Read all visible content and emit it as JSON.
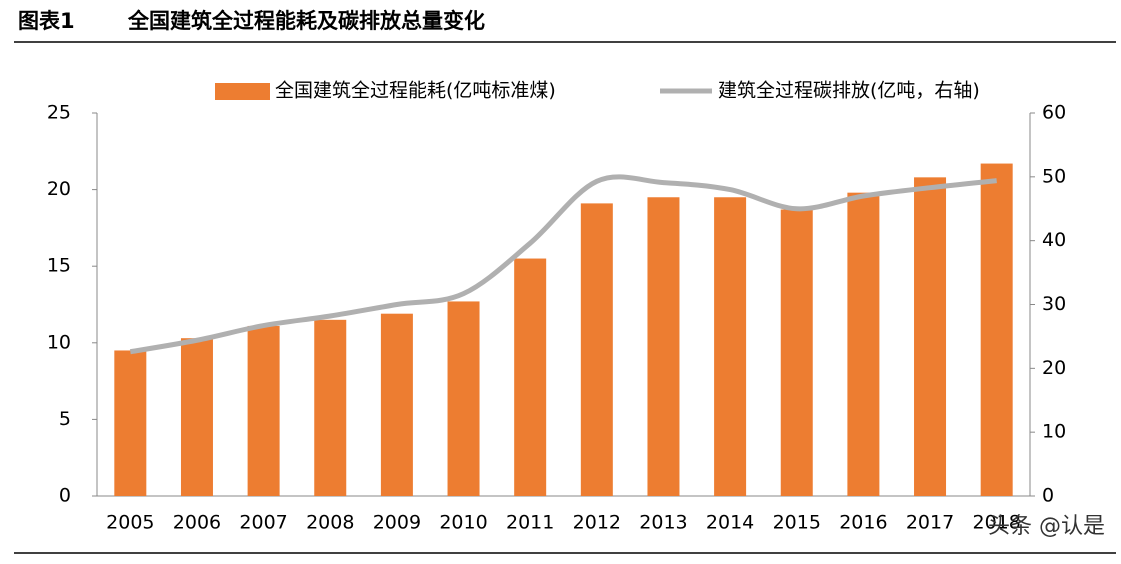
{
  "figure_label": "图表1",
  "chart_data": {
    "type": "bar_line",
    "title": "全国建筑全过程能耗及碳排放总量变化",
    "categories": [
      "2005",
      "2006",
      "2007",
      "2008",
      "2009",
      "2010",
      "2011",
      "2012",
      "2013",
      "2014",
      "2015",
      "2016",
      "2017",
      "2018"
    ],
    "series": [
      {
        "name": "全国建筑全过程能耗(亿吨标准煤)",
        "type": "bar",
        "color": "#ed7d31",
        "axis": "y",
        "values": [
          9.5,
          10.3,
          11.1,
          11.5,
          11.9,
          12.7,
          15.5,
          19.1,
          19.5,
          19.5,
          18.7,
          19.8,
          20.8,
          21.7
        ]
      },
      {
        "name": "建筑全过程碳排放(亿吨，右轴)",
        "type": "line",
        "color": "#b0b0b0",
        "axis": "y2",
        "values": [
          22.6,
          24.4,
          26.7,
          28.2,
          30.0,
          31.7,
          39.6,
          49.3,
          49.1,
          48.0,
          45.0,
          47.0,
          48.3,
          49.4
        ]
      }
    ],
    "ylim": [
      0,
      25
    ],
    "yticks": [
      0,
      5,
      10,
      15,
      20,
      25
    ],
    "y2lim": [
      0,
      60
    ],
    "y2ticks": [
      0,
      10,
      20,
      30,
      40,
      50,
      60
    ],
    "legend": "top"
  },
  "watermark": "头条 @认是"
}
